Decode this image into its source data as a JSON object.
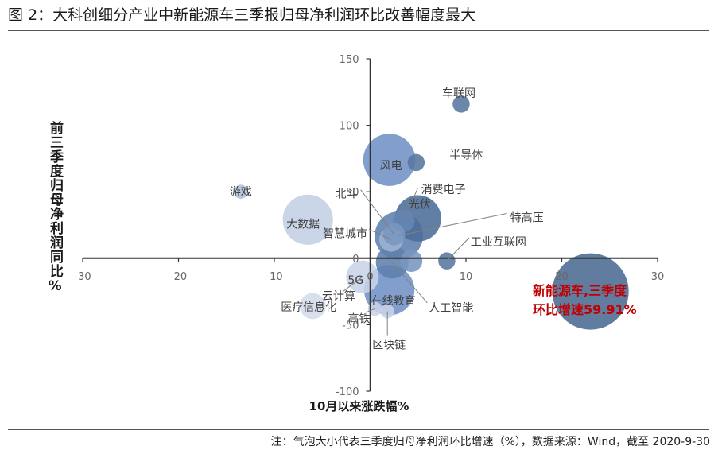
{
  "title": "图 2：大科创细分产业中新能源车三季报归母净利润环比改善幅度最大",
  "footnote": "注：气泡大小代表三季度归母净利润环比增速（%），数据来源：Wind，截至 2020-9-30",
  "colors": {
    "accent_red": "#c00000",
    "axis": "#333333",
    "bubble_dark": "#4a6a92",
    "bubble_light": "#c8d4e8"
  },
  "chart_data": {
    "type": "scatter",
    "xlabel": "10月以来涨跌幅%",
    "ylabel": "前三季度归母净利润同比%",
    "xlim": [
      -30,
      30
    ],
    "ylim": [
      -100,
      150
    ],
    "xticks": [
      "-30",
      "-20",
      "-10",
      "0",
      "10",
      "20",
      "30"
    ],
    "yticks": [
      "150",
      "100",
      "50",
      "0",
      "-50",
      "-100"
    ],
    "annotation": "新能源车,三季度\n环比增速59.91%",
    "points": [
      {
        "name": "车联网",
        "x": 9.5,
        "y": 116,
        "size": 3,
        "color": "#56779f"
      },
      {
        "name": "风电",
        "x": 2.0,
        "y": 74,
        "size": 28,
        "color": "#6f91c6"
      },
      {
        "name": "半导体",
        "x": 4.8,
        "y": 72,
        "size": 3,
        "color": "#56779f"
      },
      {
        "name": "消费电子",
        "x": 3.5,
        "y": 28,
        "size": 5,
        "color": "#6585b3"
      },
      {
        "name": "光伏",
        "x": 5.0,
        "y": 30,
        "size": 22,
        "color": "#4b6d97"
      },
      {
        "name": "游戏",
        "x": -13.5,
        "y": 50,
        "size": 2,
        "color": "#aebfd8"
      },
      {
        "name": "大数据",
        "x": -6.5,
        "y": 29,
        "size": 26,
        "color": "#c3d0e5"
      },
      {
        "name": "北斗",
        "x": 2.5,
        "y": 18,
        "size": 5,
        "color": "#7896c0"
      },
      {
        "name": "特高压",
        "x": 3.0,
        "y": 17,
        "size": 24,
        "color": "#5f80ad"
      },
      {
        "name": "智慧城市",
        "x": 2.2,
        "y": 14,
        "size": 6,
        "color": "#9db3d3"
      },
      {
        "name": "工业互联网",
        "x": 8.0,
        "y": -2,
        "size": 3,
        "color": "#56779f"
      },
      {
        "name": "5G",
        "x": 4.3,
        "y": -2,
        "size": 5,
        "color": "#7896c0"
      },
      {
        "name": "人工智能",
        "x": 2.3,
        "y": -3,
        "size": 11,
        "color": "#5f80ad"
      },
      {
        "name": "云计算",
        "x": -0.8,
        "y": -14,
        "size": 11,
        "color": "#c8d4e8"
      },
      {
        "name": "在线教育",
        "x": 2.0,
        "y": -24,
        "size": 26,
        "color": "#6f91c6"
      },
      {
        "name": "医疗信息化",
        "x": -6.0,
        "y": -36,
        "size": 7,
        "color": "#d3dceb"
      },
      {
        "name": "高铁",
        "x": 0.5,
        "y": -38,
        "size": 2,
        "color": "#c8d4e8"
      },
      {
        "name": "区块链",
        "x": 1.8,
        "y": -40,
        "size": 2,
        "color": "#c8d4e8"
      },
      {
        "name": "新能源车",
        "x": 23.0,
        "y": -25,
        "size": 59.91,
        "color": "#4a6a92"
      }
    ]
  }
}
